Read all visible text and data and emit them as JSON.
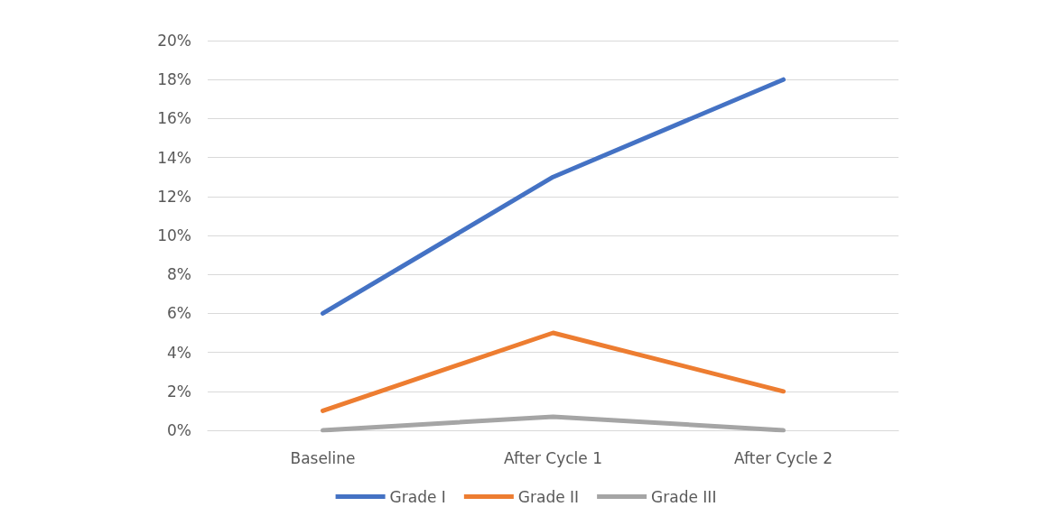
{
  "chart_data": {
    "type": "line",
    "categories": [
      "Baseline",
      "After Cycle 1",
      "After Cycle 2"
    ],
    "series": [
      {
        "name": "Grade I",
        "color": "#4472c4",
        "values": [
          6,
          13,
          18
        ]
      },
      {
        "name": "Grade II",
        "color": "#ed7d31",
        "values": [
          1,
          5,
          2
        ]
      },
      {
        "name": "Grade III",
        "color": "#a5a5a5",
        "values": [
          0,
          0.7,
          0
        ]
      }
    ],
    "ylim": [
      0,
      20
    ],
    "yticks": [
      {
        "value": 0,
        "label": "0%"
      },
      {
        "value": 2,
        "label": "2%"
      },
      {
        "value": 4,
        "label": "4%"
      },
      {
        "value": 6,
        "label": "6%"
      },
      {
        "value": 8,
        "label": "8%"
      },
      {
        "value": 10,
        "label": "10%"
      },
      {
        "value": 12,
        "label": "12%"
      },
      {
        "value": 14,
        "label": "14%"
      },
      {
        "value": 16,
        "label": "16%"
      },
      {
        "value": 18,
        "label": "18%"
      },
      {
        "value": 20,
        "label": "20%"
      }
    ],
    "grid": "y",
    "legend": "bottom",
    "marker": "none",
    "line_style": "solid"
  }
}
